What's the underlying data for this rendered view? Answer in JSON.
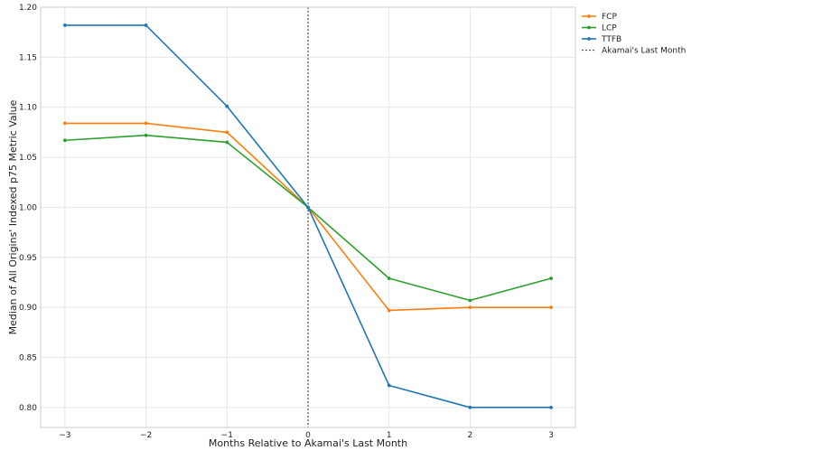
{
  "chart_data": {
    "type": "line",
    "title": "",
    "xlabel": "Months Relative to Akamai's Last Month",
    "ylabel": "Median of All Origins' Indexed p75 Metric Value",
    "x": [
      -3,
      -2,
      -1,
      0,
      1,
      2,
      3
    ],
    "x_tick_labels": [
      "−3",
      "−2",
      "−1",
      "0",
      "1",
      "2",
      "3"
    ],
    "xlim": [
      -3.3,
      3.3
    ],
    "y_ticks": [
      0.8,
      0.85,
      0.9,
      0.95,
      1.0,
      1.05,
      1.1,
      1.15,
      1.2
    ],
    "y_tick_labels": [
      "0.80",
      "0.85",
      "0.90",
      "0.95",
      "1.00",
      "1.05",
      "1.10",
      "1.15",
      "1.20"
    ],
    "ylim": [
      0.78,
      1.2
    ],
    "grid": true,
    "legend_position": "outside-top-right",
    "series": [
      {
        "name": "FCP",
        "color": "#ff7f0e",
        "values": [
          1.084,
          1.084,
          1.075,
          1.0,
          0.897,
          0.9,
          0.9
        ]
      },
      {
        "name": "LCP",
        "color": "#2ca02c",
        "values": [
          1.067,
          1.072,
          1.065,
          1.0,
          0.929,
          0.907,
          0.929
        ]
      },
      {
        "name": "TTFB",
        "color": "#1f77b4",
        "values": [
          1.182,
          1.182,
          1.101,
          1.0,
          0.822,
          0.8,
          0.8
        ]
      }
    ],
    "vline": {
      "x": 0,
      "label": "Akamai's Last Month",
      "color": "#555555",
      "style": "dotted"
    }
  }
}
